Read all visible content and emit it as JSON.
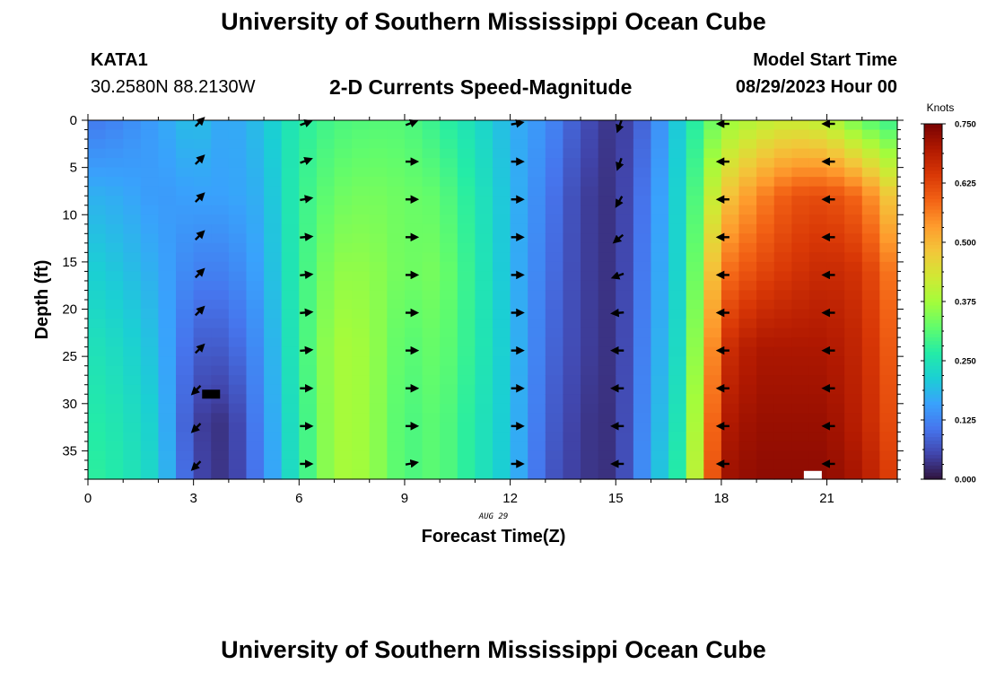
{
  "header": {
    "title": "University of Southern Mississippi Ocean Cube",
    "station": "KATA1",
    "coords": "30.2580N  88.2130W",
    "subtitle": "2-D Currents Speed-Magnitude",
    "start_label": "Model Start Time",
    "start_value": "08/29/2023 Hour 00"
  },
  "footer": {
    "title": "University of Southern Mississippi Ocean Cube"
  },
  "chart_data": {
    "type": "heatmap",
    "title": "2-D Currents Speed-Magnitude",
    "xlabel": "Forecast Time(Z)",
    "ylabel": "Depth (ft)",
    "date_label": "AUG 29",
    "xlim": [
      0,
      23
    ],
    "ylim": [
      38,
      0
    ],
    "x_ticks": [
      0,
      3,
      6,
      9,
      12,
      15,
      18,
      21
    ],
    "x_tick_labels": [
      "0",
      "3",
      "6",
      "9",
      "12",
      "15",
      "18",
      "21"
    ],
    "y_ticks": [
      0,
      5,
      10,
      15,
      20,
      25,
      30,
      35
    ],
    "y_tick_labels": [
      "0",
      "5",
      "10",
      "15",
      "20",
      "25",
      "30",
      "35"
    ],
    "colorbar": {
      "label": "Knots",
      "min": 0.0,
      "max": 0.75,
      "ticks": [
        0.0,
        0.125,
        0.25,
        0.375,
        0.5,
        0.625,
        0.75
      ],
      "tick_labels": [
        "0.000",
        "0.125",
        "0.250",
        "0.375",
        "0.500",
        "0.625",
        "0.750"
      ],
      "colors": [
        "#30123b",
        "#4145ab",
        "#4675ed",
        "#39a2fc",
        "#1bcfd4",
        "#24eca6",
        "#61fc6c",
        "#a4fc3b",
        "#d1e834",
        "#f3c63a",
        "#fe9b2d",
        "#f36315",
        "#d93806",
        "#b11901",
        "#7a0402"
      ]
    },
    "hours": [
      0,
      1,
      2,
      3,
      4,
      5,
      6,
      7,
      8,
      9,
      10,
      11,
      12,
      13,
      14,
      15,
      16,
      17,
      18,
      19,
      20,
      21,
      22,
      23
    ],
    "depth_rows": [
      0,
      8,
      16,
      24,
      32,
      38
    ],
    "speed_knots": [
      [
        0.11,
        0.13,
        0.16,
        0.2,
        0.16,
        0.2,
        0.27,
        0.3,
        0.31,
        0.31,
        0.28,
        0.24,
        0.18,
        0.14,
        0.07,
        0.03,
        0.11,
        0.24,
        0.36,
        0.4,
        0.42,
        0.4,
        0.32,
        0.28
      ],
      [
        0.18,
        0.17,
        0.15,
        0.16,
        0.16,
        0.18,
        0.28,
        0.33,
        0.34,
        0.33,
        0.32,
        0.26,
        0.19,
        0.12,
        0.05,
        0.03,
        0.13,
        0.25,
        0.47,
        0.55,
        0.61,
        0.62,
        0.58,
        0.45
      ],
      [
        0.22,
        0.2,
        0.17,
        0.12,
        0.12,
        0.17,
        0.28,
        0.36,
        0.36,
        0.33,
        0.34,
        0.27,
        0.19,
        0.11,
        0.05,
        0.03,
        0.14,
        0.25,
        0.57,
        0.62,
        0.65,
        0.67,
        0.65,
        0.55
      ],
      [
        0.25,
        0.23,
        0.19,
        0.08,
        0.08,
        0.15,
        0.28,
        0.38,
        0.37,
        0.31,
        0.33,
        0.27,
        0.2,
        0.1,
        0.05,
        0.03,
        0.15,
        0.26,
        0.65,
        0.7,
        0.7,
        0.7,
        0.67,
        0.58
      ],
      [
        0.27,
        0.25,
        0.21,
        0.05,
        0.03,
        0.14,
        0.27,
        0.38,
        0.37,
        0.3,
        0.32,
        0.26,
        0.2,
        0.09,
        0.04,
        0.03,
        0.16,
        0.28,
        0.69,
        0.72,
        0.72,
        0.72,
        0.68,
        0.6
      ],
      [
        0.28,
        0.26,
        0.22,
        0.06,
        0.03,
        0.13,
        0.27,
        0.38,
        0.37,
        0.3,
        0.32,
        0.26,
        0.2,
        0.08,
        0.04,
        0.03,
        0.17,
        0.3,
        0.71,
        0.73,
        0.73,
        0.73,
        0.7,
        0.62
      ]
    ],
    "vector_hours": [
      3,
      6,
      9,
      12,
      15,
      18,
      21
    ],
    "vector_depths": [
      0,
      4,
      8,
      12,
      16,
      20,
      24,
      28,
      32,
      36
    ],
    "vector_directions_deg": [
      [
        45,
        45,
        45,
        45,
        45,
        45,
        45,
        225,
        225,
        225
      ],
      [
        70,
        70,
        80,
        85,
        85,
        85,
        85,
        90,
        90,
        90
      ],
      [
        70,
        90,
        90,
        90,
        90,
        90,
        90,
        90,
        90,
        80
      ],
      [
        80,
        90,
        90,
        90,
        90,
        90,
        90,
        90,
        90,
        90
      ],
      [
        200,
        200,
        210,
        230,
        250,
        265,
        270,
        270,
        270,
        270
      ],
      [
        270,
        270,
        270,
        270,
        270,
        270,
        270,
        270,
        270,
        270
      ],
      [
        270,
        270,
        270,
        270,
        270,
        270,
        270,
        270,
        270,
        270
      ]
    ],
    "markers": [
      {
        "name": "black-marker",
        "x": 3.5,
        "depth": 29,
        "color": "#000000"
      },
      {
        "name": "white-marker",
        "x": 20.6,
        "depth": 37.6,
        "color": "#ffffff"
      }
    ]
  }
}
